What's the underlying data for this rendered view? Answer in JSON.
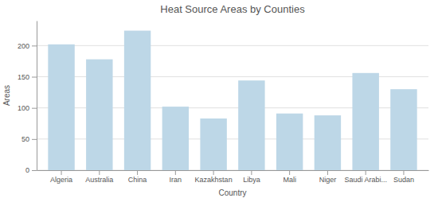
{
  "chart_data": {
    "type": "bar",
    "title": "Heat Source Areas by Counties",
    "xlabel": "Country",
    "ylabel": "Areas",
    "categories": [
      "Algeria",
      "Australia",
      "China",
      "Iran",
      "Kazakhstan",
      "Libya",
      "Mali",
      "Niger",
      "Saudi Arabi...",
      "Sudan"
    ],
    "values": [
      202,
      178,
      224,
      102,
      83,
      144,
      91,
      88,
      156,
      130
    ],
    "color": "#bdd7e7",
    "ylim": [
      0,
      240
    ],
    "yticks": [
      0,
      50,
      100,
      150,
      200
    ],
    "grid": true
  }
}
